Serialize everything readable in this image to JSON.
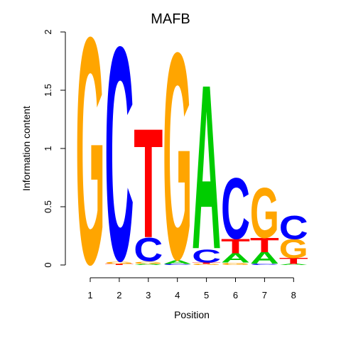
{
  "chart_data": {
    "type": "sequence-logo",
    "title": "MAFB",
    "xlabel": "Position",
    "ylabel": "Information content",
    "ylim": [
      0,
      2
    ],
    "y_ticks": [
      "0",
      "0.5",
      "1",
      "1.5",
      "2"
    ],
    "x_ticks": [
      "1",
      "2",
      "3",
      "4",
      "5",
      "6",
      "7",
      "8"
    ],
    "colors": {
      "A": "#00cc00",
      "C": "#0000ff",
      "G": "#ffa500",
      "T": "#ff0000"
    },
    "positions": [
      {
        "position": "1",
        "letters": [
          {
            "base": "G",
            "height": 1.93
          }
        ]
      },
      {
        "position": "2",
        "letters": [
          {
            "base": "T",
            "height": 0.01
          },
          {
            "base": "G",
            "height": 0.02
          },
          {
            "base": "C",
            "height": 1.82
          }
        ]
      },
      {
        "position": "3",
        "letters": [
          {
            "base": "A",
            "height": 0.01
          },
          {
            "base": "G",
            "height": 0.02
          },
          {
            "base": "C",
            "height": 0.2
          },
          {
            "base": "T",
            "height": 0.93
          }
        ]
      },
      {
        "position": "4",
        "letters": [
          {
            "base": "C",
            "height": 0.01
          },
          {
            "base": "A",
            "height": 0.03
          },
          {
            "base": "G",
            "height": 1.76
          }
        ]
      },
      {
        "position": "5",
        "letters": [
          {
            "base": "G",
            "height": 0.01
          },
          {
            "base": "T",
            "height": 0.01
          },
          {
            "base": "C",
            "height": 0.11
          },
          {
            "base": "A",
            "height": 1.4
          }
        ]
      },
      {
        "position": "6",
        "letters": [
          {
            "base": "G",
            "height": 0.02
          },
          {
            "base": "A",
            "height": 0.08
          },
          {
            "base": "T",
            "height": 0.12
          },
          {
            "base": "C",
            "height": 0.52
          }
        ]
      },
      {
        "position": "7",
        "letters": [
          {
            "base": "C",
            "height": 0.01
          },
          {
            "base": "A",
            "height": 0.1
          },
          {
            "base": "T",
            "height": 0.12
          },
          {
            "base": "G",
            "height": 0.43
          }
        ]
      },
      {
        "position": "8",
        "letters": [
          {
            "base": "A",
            "height": 0.01
          },
          {
            "base": "T",
            "height": 0.05
          },
          {
            "base": "G",
            "height": 0.16
          },
          {
            "base": "C",
            "height": 0.2
          }
        ]
      }
    ]
  }
}
